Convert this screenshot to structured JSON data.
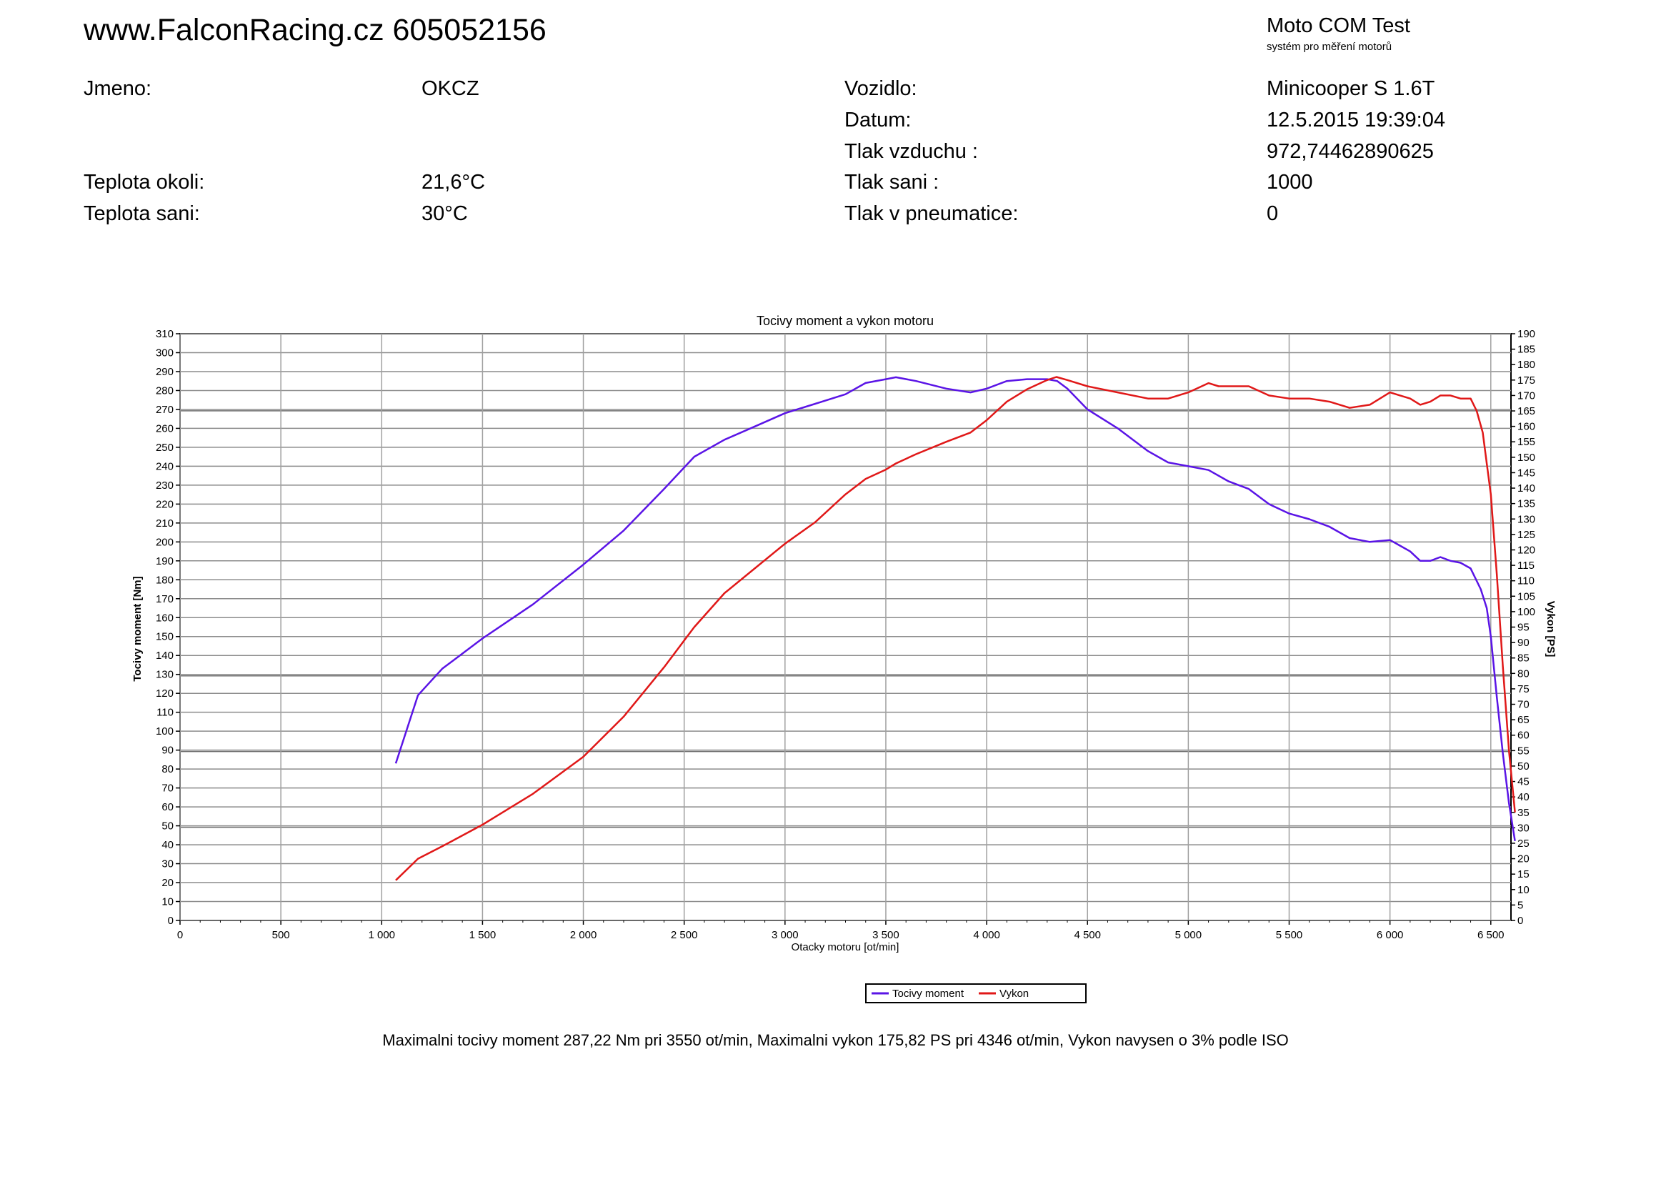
{
  "header": {
    "site": "www.FalconRacing.cz 605052156",
    "brand_title": "Moto COM Test",
    "brand_subtitle": "systém pro měření motorů"
  },
  "info": {
    "left": [
      {
        "label": "Jmeno:",
        "value": "OKCZ"
      },
      {
        "label": "Teplota okoli:",
        "value": "21,6°C"
      },
      {
        "label": "Teplota sani:",
        "value": "30°C"
      }
    ],
    "right": [
      {
        "label": "Vozidlo:",
        "value": "Minicooper S 1.6T"
      },
      {
        "label": "Datum:",
        "value": "12.5.2015 19:39:04"
      },
      {
        "label": "Tlak vzduchu :",
        "value": "972,74462890625"
      },
      {
        "label": "Tlak sani :",
        "value": "1000"
      },
      {
        "label": "Tlak v pneumatice:",
        "value": "0"
      }
    ]
  },
  "chart_data": {
    "type": "line",
    "title": "Tocivy moment a vykon motoru",
    "xlabel": "Otacky motoru [ot/min]",
    "ylabel": "Tocivy moment [Nm]",
    "y2label": "Vykon [PS]",
    "xlim": [
      0,
      6600
    ],
    "ylim": [
      0,
      310
    ],
    "y2lim": [
      0,
      190
    ],
    "x_ticks": [
      0,
      500,
      1000,
      1500,
      2000,
      2500,
      3000,
      3500,
      4000,
      4500,
      5000,
      5500,
      6000,
      6500
    ],
    "x_tick_labels": [
      "0",
      "500",
      "1 000",
      "1 500",
      "2 000",
      "2 500",
      "3 000",
      "3 500",
      "4 000",
      "4 500",
      "5 000",
      "5 500",
      "6 000",
      "6 500"
    ],
    "y_ticks": [
      0,
      10,
      20,
      30,
      40,
      50,
      60,
      70,
      80,
      90,
      100,
      110,
      120,
      130,
      140,
      150,
      160,
      170,
      180,
      190,
      200,
      210,
      220,
      230,
      240,
      250,
      260,
      270,
      280,
      290,
      300,
      310
    ],
    "y2_ticks": [
      0,
      5,
      10,
      15,
      20,
      25,
      30,
      35,
      40,
      45,
      50,
      55,
      60,
      65,
      70,
      75,
      80,
      85,
      90,
      95,
      100,
      105,
      110,
      115,
      120,
      125,
      130,
      135,
      140,
      145,
      150,
      155,
      160,
      165,
      170,
      175,
      180,
      185,
      190
    ],
    "legend_position": "bottom-center",
    "grid": true,
    "series": [
      {
        "name": "Tocivy moment",
        "axis": "left",
        "color": "#5a14e6",
        "x": [
          1070,
          1180,
          1300,
          1500,
          1750,
          2000,
          2200,
          2400,
          2550,
          2700,
          2850,
          3000,
          3150,
          3300,
          3400,
          3500,
          3550,
          3650,
          3800,
          3920,
          4000,
          4100,
          4200,
          4300,
          4350,
          4400,
          4500,
          4650,
          4800,
          4900,
          5000,
          5100,
          5200,
          5300,
          5400,
          5500,
          5600,
          5700,
          5800,
          5900,
          6000,
          6050,
          6100,
          6150,
          6200,
          6250,
          6300,
          6350,
          6400,
          6450,
          6480,
          6500,
          6530,
          6560,
          6590,
          6620
        ],
        "y": [
          83,
          119,
          133,
          149,
          167,
          188,
          206,
          228,
          245,
          254,
          261,
          268,
          273,
          278,
          284,
          286,
          287,
          285,
          281,
          279,
          281,
          285,
          286,
          286,
          285,
          281,
          270,
          260,
          248,
          242,
          240,
          238,
          232,
          228,
          220,
          215,
          212,
          208,
          202,
          200,
          201,
          198,
          195,
          190,
          190,
          192,
          190,
          189,
          186,
          175,
          165,
          150,
          118,
          88,
          62,
          42
        ]
      },
      {
        "name": "Vykon",
        "axis": "right",
        "color": "#e01818",
        "x": [
          1070,
          1180,
          1300,
          1500,
          1750,
          2000,
          2200,
          2400,
          2550,
          2700,
          2850,
          3000,
          3150,
          3300,
          3400,
          3500,
          3550,
          3650,
          3800,
          3920,
          4000,
          4100,
          4200,
          4300,
          4346,
          4400,
          4500,
          4650,
          4800,
          4900,
          5000,
          5100,
          5150,
          5200,
          5300,
          5400,
          5500,
          5600,
          5700,
          5800,
          5900,
          6000,
          6050,
          6100,
          6150,
          6200,
          6250,
          6300,
          6350,
          6400,
          6430,
          6460,
          6480,
          6500,
          6530,
          6560,
          6590,
          6620
        ],
        "y": [
          13,
          20,
          24,
          31,
          41,
          53,
          66,
          82,
          95,
          106,
          114,
          122,
          129,
          138,
          143,
          146,
          148,
          151,
          155,
          158,
          162,
          168,
          172,
          175,
          176,
          175,
          173,
          171,
          169,
          169,
          171,
          174,
          173,
          173,
          173,
          170,
          169,
          169,
          168,
          166,
          167,
          171,
          170,
          169,
          167,
          168,
          170,
          170,
          169,
          169,
          165,
          158,
          148,
          138,
          112,
          82,
          55,
          35
        ]
      }
    ]
  },
  "summary": "Maximalni tocivy moment 287,22 Nm pri 3550 ot/min,  Maximalni vykon 175,82 PS pri 4346 ot/min,  Vykon navysen o 3% podle ISO"
}
